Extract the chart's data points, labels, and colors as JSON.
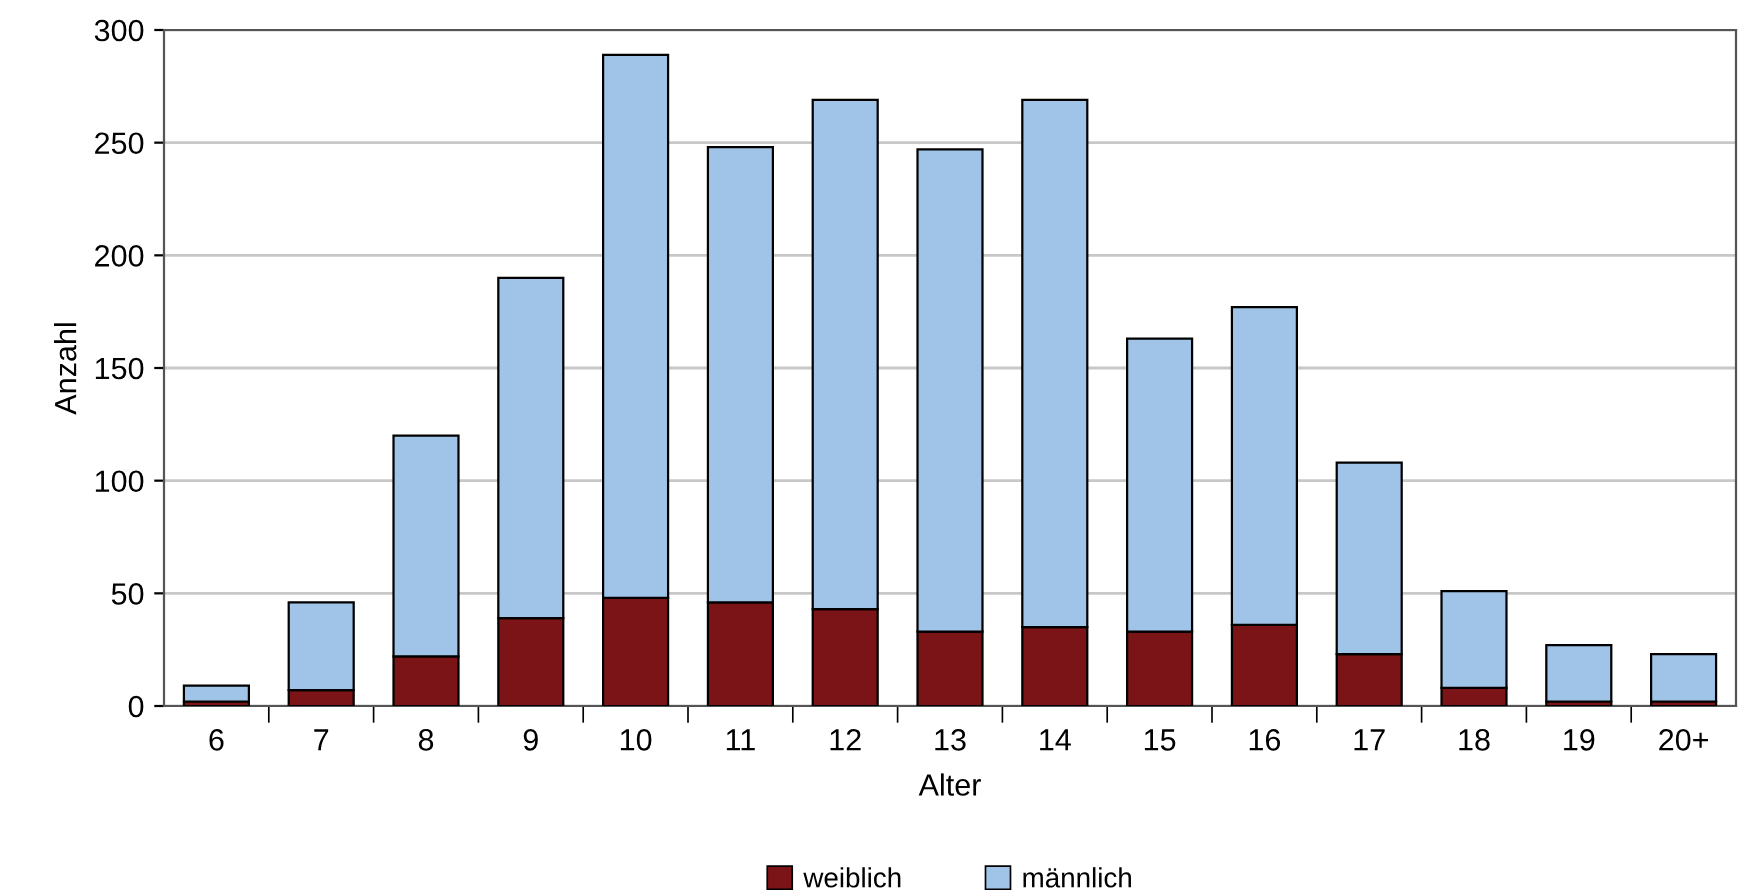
{
  "chart_data": {
    "type": "bar",
    "stacked": true,
    "xlabel": "Alter",
    "ylabel": "Anzahl",
    "categories": [
      "6",
      "7",
      "8",
      "9",
      "10",
      "11",
      "12",
      "13",
      "14",
      "15",
      "16",
      "17",
      "18",
      "19",
      "20+"
    ],
    "series": [
      {
        "name": "weiblich",
        "color": "#7b1416",
        "values": [
          2,
          7,
          22,
          39,
          48,
          46,
          43,
          33,
          35,
          33,
          36,
          23,
          8,
          2,
          2
        ]
      },
      {
        "name": "männlich",
        "color": "#9fc4e8",
        "values": [
          7,
          39,
          98,
          151,
          241,
          202,
          226,
          214,
          234,
          130,
          141,
          85,
          43,
          25,
          21
        ]
      }
    ],
    "ylim": [
      0,
      300
    ],
    "yticks": [
      0,
      50,
      100,
      150,
      200,
      250,
      300
    ],
    "grid": "y",
    "legend": "bottom"
  }
}
